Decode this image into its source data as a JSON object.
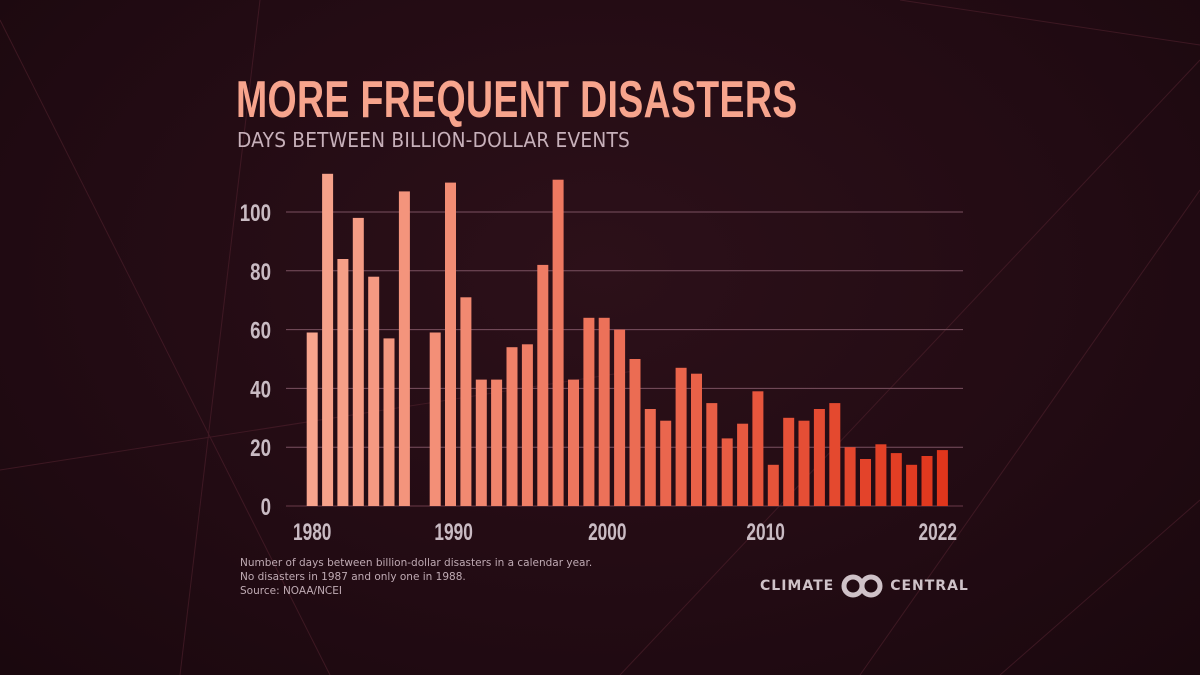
{
  "header": {
    "title": "MORE FREQUENT DISASTERS",
    "subtitle": "DAYS BETWEEN BILLION-DOLLAR EVENTS"
  },
  "footer": {
    "notes": [
      "Number of days between billion-dollar disasters in a calendar year.",
      "No disasters in 1987 and only one in 1988.",
      "Source: NOAA/NCEI"
    ],
    "logo": {
      "left_word": "CLIMATE",
      "right_word": "CENTRAL",
      "icon": "interlocking-rings-icon"
    }
  },
  "colors": {
    "title": "#f7a48d",
    "bar_start": "#f7a48d",
    "bar_end": "#e0361c",
    "gridline": "#7a5060",
    "tick_text": "#c9bbc3"
  },
  "chart_data": {
    "type": "bar",
    "title": "MORE FREQUENT DISASTERS",
    "subtitle": "DAYS BETWEEN BILLION-DOLLAR EVENTS",
    "xlabel": "",
    "ylabel": "",
    "ylim": [
      0,
      115
    ],
    "yticks": [
      0,
      20,
      40,
      60,
      80,
      100
    ],
    "xtick_labels": [
      "1980",
      "1990",
      "2000",
      "2010",
      "2022"
    ],
    "grid": true,
    "legend": "none",
    "categories": [
      "1980",
      "1981",
      "1982",
      "1983",
      "1984",
      "1985",
      "1986",
      "1987-88",
      "1989",
      "1990",
      "1991",
      "1992",
      "1993",
      "1994",
      "1995",
      "1996",
      "1997",
      "1998",
      "1999",
      "2000",
      "2001",
      "2002",
      "2003",
      "2004",
      "2005",
      "2006",
      "2007",
      "2008",
      "2009",
      "2010",
      "2011",
      "2012",
      "2013",
      "2014",
      "2015",
      "2016",
      "2017",
      "2018",
      "2019",
      "2020",
      "2021",
      "2022"
    ],
    "values": [
      59,
      113,
      84,
      98,
      78,
      57,
      107,
      null,
      59,
      110,
      71,
      43,
      43,
      54,
      55,
      82,
      111,
      43,
      64,
      64,
      60,
      50,
      33,
      29,
      47,
      45,
      35,
      23,
      28,
      39,
      14,
      30,
      29,
      33,
      35,
      20,
      16,
      21,
      18,
      14,
      17,
      19
    ],
    "xtick_positions": [
      0,
      9.2,
      19.2,
      29.5,
      40.7
    ]
  }
}
